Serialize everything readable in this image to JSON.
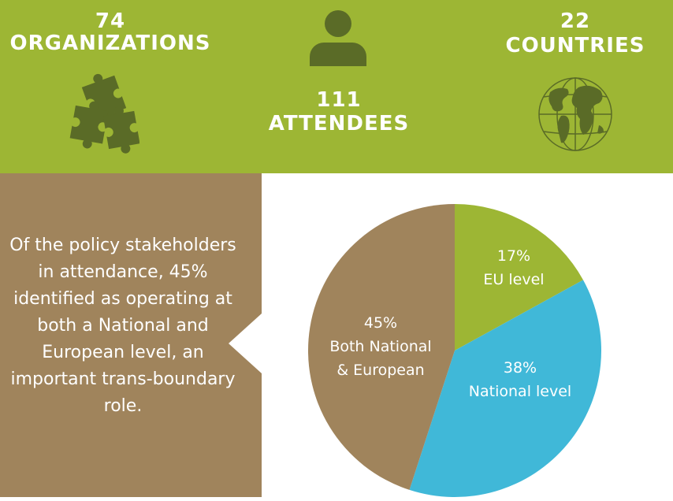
{
  "stats": {
    "organizations": {
      "number": "74",
      "label": "ORGANIZATIONS",
      "icon": "puzzle-icon"
    },
    "attendees": {
      "number": "111",
      "label": "ATTENDEES",
      "icon": "person-icon"
    },
    "countries": {
      "number": "22",
      "label": "COUNTRIES",
      "icon": "globe-icon"
    }
  },
  "panel": {
    "text": "Of the policy stakeholders in attendance, 45% identified as operating at both a National and European level, an important trans-boundary role."
  },
  "colors": {
    "green": "#9db634",
    "brown": "#a0845c",
    "blue": "#40b8d8",
    "icon_dark": "#5a6b27"
  },
  "chart_data": {
    "type": "pie",
    "slices": [
      {
        "percent": "17%",
        "label": "EU level",
        "value": 17,
        "color": "#9db634"
      },
      {
        "percent": "38%",
        "label": "National level",
        "value": 38,
        "color": "#40b8d8"
      },
      {
        "percent": "45%",
        "label": "Both National & European",
        "value": 45,
        "color": "#a0845c"
      }
    ]
  }
}
